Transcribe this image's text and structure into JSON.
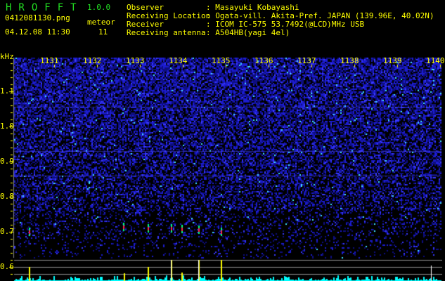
{
  "header": {
    "app_title": "HROFFT",
    "version": "1.0.0",
    "filename": "0412081130.png",
    "datetime": "04.12.08 11:30",
    "meteor_label": "meteor",
    "meteor_count": "11"
  },
  "info": {
    "observer_label": "Observer",
    "observer": ": Masayuki Kobayashi",
    "location_label": "Receiving Location",
    "location": ": Ogata-vill. Akita-Pref. JAPAN (139.96E, 40.02N)",
    "receiver_label": "Receiver",
    "receiver": ": ICOM IC-575 53.7492(@LCD)MHz USB",
    "antenna_label": "Receiving antenna",
    "antenna": ": A504HB(yagi 4el)"
  },
  "spectrogram": {
    "y_unit": "kHz",
    "y_ticks": [
      "1.1",
      "1.0",
      "0.9",
      "0.8",
      "0.7",
      "0.6"
    ],
    "x_ticks": [
      "1131",
      "1132",
      "1133",
      "1134",
      "1135",
      "1136",
      "1137",
      "1138",
      "1139",
      "1140"
    ],
    "colors": {
      "background": "#000000",
      "noise": "#1a1aff",
      "text": "#ffff00",
      "histogram": "#00ffff",
      "meteor_bar": "#ffff00"
    }
  }
}
